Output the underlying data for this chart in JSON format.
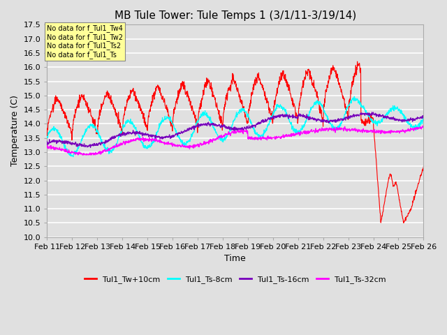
{
  "title": "MB Tule Tower: Tule Temps 1 (3/1/11-3/19/14)",
  "xlabel": "Time",
  "ylabel": "Temperature (C)",
  "ylim": [
    10.0,
    17.5
  ],
  "yticks": [
    10.0,
    10.5,
    11.0,
    11.5,
    12.0,
    12.5,
    13.0,
    13.5,
    14.0,
    14.5,
    15.0,
    15.5,
    16.0,
    16.5,
    17.0,
    17.5
  ],
  "xticklabels": [
    "Feb 11",
    "Feb 12",
    "Feb 13",
    "Feb 14",
    "Feb 15",
    "Feb 16",
    "Feb 17",
    "Feb 18",
    "Feb 19",
    "Feb 20",
    "Feb 21",
    "Feb 22",
    "Feb 23",
    "Feb 24",
    "Feb 25",
    "Feb 26"
  ],
  "legend_labels": [
    "Tul1_Tw+10cm",
    "Tul1_Ts-8cm",
    "Tul1_Ts-16cm",
    "Tul1_Ts-32cm"
  ],
  "line_colors": [
    "#ff0000",
    "#00ffff",
    "#7700bb",
    "#ff00ff"
  ],
  "no_data_labels": [
    "No data for f_Tul1_Tw4",
    "No data for f_Tul1_Tw2",
    "No data for f_Tul1_Ts2",
    "No data for f_Tul1_Ts"
  ],
  "no_data_box_color": "#ffff99",
  "background_color": "#e0e0e0",
  "plot_bg_color": "#e0e0e0",
  "grid_color": "#ffffff",
  "title_fontsize": 11,
  "axis_fontsize": 9,
  "tick_fontsize": 8
}
